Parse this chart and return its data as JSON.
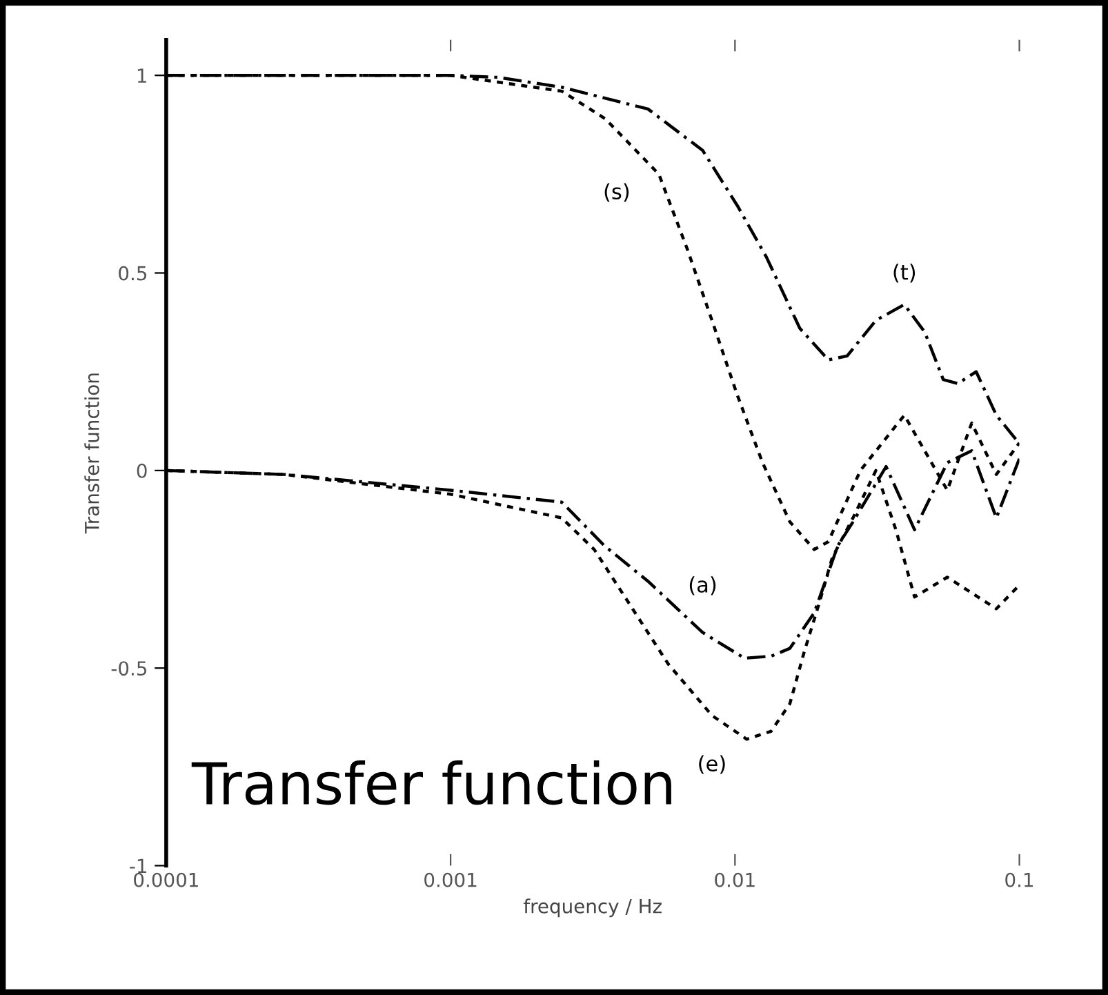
{
  "chart_data": {
    "type": "line",
    "xlabel": "frequency / Hz",
    "ylabel": "Transfer function",
    "log": "x",
    "xlim": [
      0.0001,
      0.1
    ],
    "xticks": [
      0.0001,
      0.001,
      0.01,
      0.1
    ],
    "ylim": [
      -1,
      1.09
    ],
    "yticks": [
      -1,
      -0.5,
      0,
      0.5,
      1
    ],
    "grid": false,
    "legend": false,
    "marker": "none",
    "series": [
      {
        "name": "(t)",
        "color": "#000000",
        "line_style": "dashed",
        "x": [
          0.0001,
          0.001,
          0.00147,
          0.00246,
          0.00494,
          0.0077,
          0.0102,
          0.0129,
          0.0169,
          0.0213,
          0.0248,
          0.0313,
          0.0394,
          0.0465,
          0.054,
          0.0607,
          0.0705,
          0.083,
          0.0995
        ],
        "values": [
          1,
          1,
          0.995,
          0.97,
          0.915,
          0.81,
          0.67,
          0.54,
          0.36,
          0.28,
          0.29,
          0.38,
          0.42,
          0.35,
          0.23,
          0.22,
          0.25,
          0.14,
          0.07
        ]
      },
      {
        "name": "(s)",
        "color": "#000000",
        "line_style": "dotted",
        "x": [
          0.0001,
          0.001,
          0.00246,
          0.0035,
          0.0054,
          0.0068,
          0.0083,
          0.0102,
          0.0125,
          0.0156,
          0.019,
          0.0213,
          0.0276,
          0.0394,
          0.0558,
          0.068,
          0.083,
          0.1
        ],
        "values": [
          1,
          1,
          0.96,
          0.89,
          0.75,
          0.56,
          0.38,
          0.19,
          0.02,
          -0.13,
          -0.2,
          -0.18,
          0.0,
          0.14,
          -0.05,
          0.12,
          -0.01,
          0.07
        ]
      },
      {
        "name": "(a)",
        "color": "#000000",
        "line_style": "dashed",
        "x": [
          0.0001,
          0.00026,
          0.001,
          0.00246,
          0.00347,
          0.00494,
          0.0077,
          0.0108,
          0.0134,
          0.0156,
          0.019,
          0.023,
          0.026,
          0.034,
          0.0428,
          0.0558,
          0.068,
          0.083,
          0.1
        ],
        "values": [
          0,
          -0.01,
          -0.05,
          -0.08,
          -0.19,
          -0.28,
          -0.41,
          -0.475,
          -0.47,
          -0.45,
          -0.36,
          -0.19,
          -0.13,
          0.01,
          -0.15,
          0.02,
          0.05,
          -0.12,
          0.03
        ]
      },
      {
        "name": "(e)",
        "color": "#000000",
        "line_style": "dotted",
        "x": [
          0.0001,
          0.00026,
          0.001,
          0.00246,
          0.0032,
          0.00583,
          0.0083,
          0.011,
          0.0134,
          0.0156,
          0.0175,
          0.0197,
          0.022,
          0.026,
          0.0313,
          0.0368,
          0.0428,
          0.0558,
          0.083,
          0.1
        ],
        "values": [
          0,
          -0.01,
          -0.06,
          -0.12,
          -0.2,
          -0.49,
          -0.62,
          -0.68,
          -0.66,
          -0.59,
          -0.46,
          -0.34,
          -0.22,
          -0.12,
          0.0,
          -0.15,
          -0.32,
          -0.27,
          -0.35,
          -0.29
        ]
      }
    ],
    "annotations": [
      "Transfer function"
    ]
  }
}
